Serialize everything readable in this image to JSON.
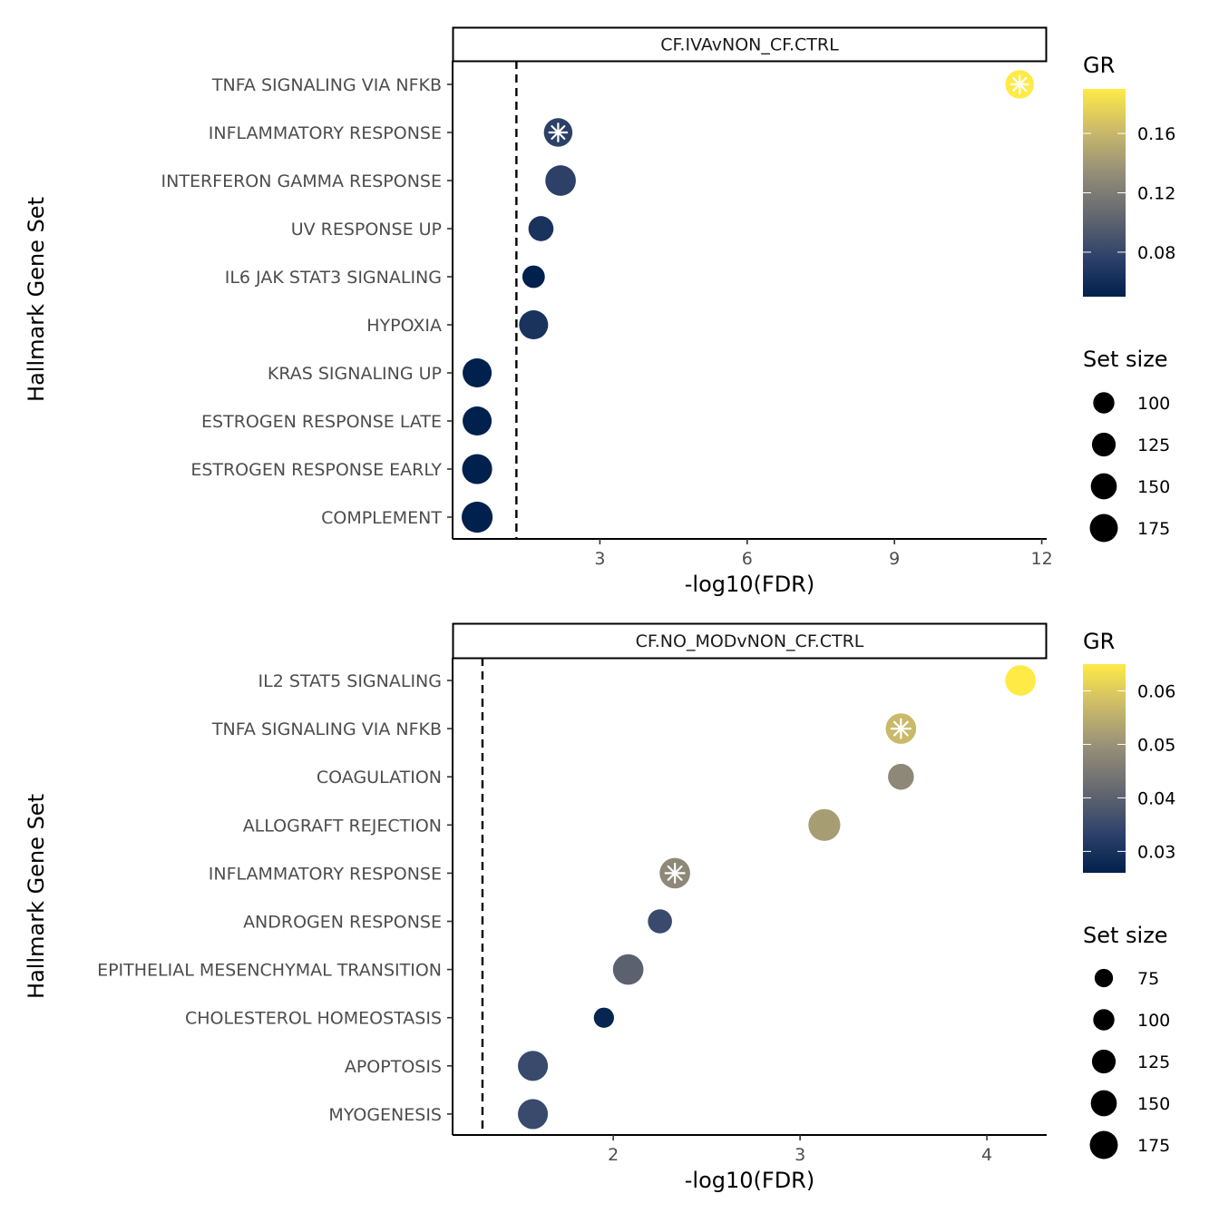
{
  "chart_data": [
    {
      "type": "scatter",
      "facet": "CF.IVAvNON_CF.CTRL",
      "xlabel": "-log10(FDR)",
      "ylabel": "Hallmark Gene Set",
      "xlim": [
        0.0,
        12.1
      ],
      "xticks": [
        3,
        6,
        9,
        12
      ],
      "threshold": 1.3,
      "threshold_style": "dashed",
      "star_marker": "asterisk",
      "categories": [
        "TNFA SIGNALING VIA NFKB",
        "INFLAMMATORY RESPONSE",
        "INTERFERON GAMMA RESPONSE",
        "UV RESPONSE UP",
        "IL6 JAK STAT3 SIGNALING",
        "HYPOXIA",
        "KRAS SIGNALING UP",
        "ESTROGEN RESPONSE LATE",
        "ESTROGEN RESPONSE EARLY",
        "COMPLEMENT"
      ],
      "points": [
        {
          "set": "TNFA SIGNALING VIA NFKB",
          "x": 11.55,
          "gr": 0.19,
          "size": 140,
          "star": true
        },
        {
          "set": "INFLAMMATORY RESPONSE",
          "x": 2.15,
          "gr": 0.075,
          "size": 140,
          "star": true
        },
        {
          "set": "INTERFERON GAMMA RESPONSE",
          "x": 2.2,
          "gr": 0.075,
          "size": 160,
          "star": false
        },
        {
          "set": "UV RESPONSE UP",
          "x": 1.8,
          "gr": 0.065,
          "size": 108,
          "star": false
        },
        {
          "set": "IL6 JAK STAT3 SIGNALING",
          "x": 1.65,
          "gr": 0.05,
          "size": 87,
          "star": false
        },
        {
          "set": "HYPOXIA",
          "x": 1.65,
          "gr": 0.065,
          "size": 145,
          "star": false
        },
        {
          "set": "KRAS SIGNALING UP",
          "x": 0.5,
          "gr": 0.05,
          "size": 145,
          "star": false
        },
        {
          "set": "ESTROGEN RESPONSE LATE",
          "x": 0.5,
          "gr": 0.05,
          "size": 145,
          "star": false
        },
        {
          "set": "ESTROGEN RESPONSE EARLY",
          "x": 0.5,
          "gr": 0.05,
          "size": 155,
          "star": false
        },
        {
          "set": "COMPLEMENT",
          "x": 0.5,
          "gr": 0.05,
          "size": 165,
          "star": false
        }
      ],
      "legend_gr": {
        "title": "GR",
        "min": 0.05,
        "max": 0.19,
        "ticks": [
          0.08,
          0.12,
          0.16
        ],
        "tick_labels": [
          "0.08",
          "0.12",
          "0.16"
        ]
      },
      "legend_size": {
        "title": "Set size",
        "values": [
          100,
          125,
          150,
          175
        ]
      },
      "legend_placement": "right"
    },
    {
      "type": "scatter",
      "facet": "CF.NO_MODvNON_CF.CTRL",
      "xlabel": "-log10(FDR)",
      "ylabel": "Hallmark Gene Set",
      "xlim": [
        1.14,
        4.32
      ],
      "xticks": [
        2,
        3,
        4
      ],
      "threshold": 1.3,
      "threshold_style": "dashed",
      "star_marker": "asterisk",
      "categories": [
        "IL2 STAT5 SIGNALING",
        "TNFA SIGNALING VIA NFKB",
        "COAGULATION",
        "ALLOGRAFT REJECTION",
        "INFLAMMATORY RESPONSE",
        "ANDROGEN RESPONSE",
        "EPITHELIAL MESENCHYMAL TRANSITION",
        "CHOLESTEROL HOMEOSTASIS",
        "APOPTOSIS",
        "MYOGENESIS"
      ],
      "points": [
        {
          "set": "IL2 STAT5 SIGNALING",
          "x": 4.18,
          "gr": 0.065,
          "size": 160,
          "star": false
        },
        {
          "set": "TNFA SIGNALING VIA NFKB",
          "x": 3.54,
          "gr": 0.057,
          "size": 160,
          "star": true
        },
        {
          "set": "COAGULATION",
          "x": 3.54,
          "gr": 0.048,
          "size": 115,
          "star": false
        },
        {
          "set": "ALLOGRAFT REJECTION",
          "x": 3.13,
          "gr": 0.052,
          "size": 175,
          "star": false
        },
        {
          "set": "INFLAMMATORY RESPONSE",
          "x": 2.33,
          "gr": 0.048,
          "size": 160,
          "star": true
        },
        {
          "set": "ANDROGEN RESPONSE",
          "x": 2.25,
          "gr": 0.035,
          "size": 100,
          "star": false
        },
        {
          "set": "EPITHELIAL MESENCHYMAL TRANSITION",
          "x": 2.08,
          "gr": 0.04,
          "size": 160,
          "star": false
        },
        {
          "set": "CHOLESTEROL HOMEOSTASIS",
          "x": 1.95,
          "gr": 0.027,
          "size": 70,
          "star": false
        },
        {
          "set": "APOPTOSIS",
          "x": 1.57,
          "gr": 0.035,
          "size": 155,
          "star": false
        },
        {
          "set": "MYOGENESIS",
          "x": 1.57,
          "gr": 0.035,
          "size": 155,
          "star": false
        }
      ],
      "legend_gr": {
        "title": "GR",
        "min": 0.026,
        "max": 0.065,
        "ticks": [
          0.03,
          0.04,
          0.05,
          0.06
        ],
        "tick_labels": [
          "0.03",
          "0.04",
          "0.05",
          "0.06"
        ]
      },
      "legend_size": {
        "title": "Set size",
        "values": [
          75,
          100,
          125,
          150,
          175
        ]
      },
      "legend_placement": "right"
    }
  ],
  "colors": {
    "gradient": [
      "#00204D",
      "#31446B",
      "#666970",
      "#958F78",
      "#CBBA69",
      "#FFEA46"
    ],
    "dashed_line": "#000000",
    "axis_text": "#4D4D4D"
  }
}
